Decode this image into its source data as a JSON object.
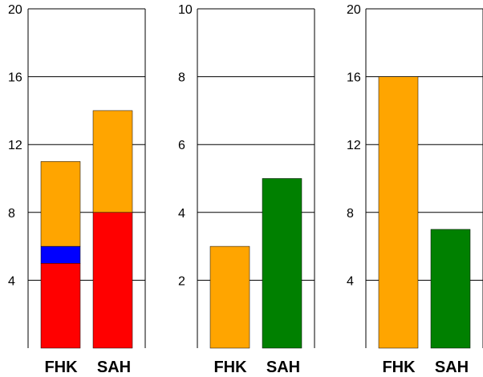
{
  "chart_data": [
    {
      "type": "bar",
      "stacked": true,
      "categories": [
        "FHK",
        "SAH"
      ],
      "ylim": [
        0,
        20
      ],
      "yticks": [
        4,
        8,
        12,
        16,
        20
      ],
      "grid": true,
      "series": [
        {
          "color": "#ff0000",
          "values": [
            5,
            8
          ]
        },
        {
          "color": "#0000ff",
          "values": [
            1,
            0
          ]
        },
        {
          "color": "#ffa500",
          "values": [
            5,
            6
          ]
        }
      ]
    },
    {
      "type": "bar",
      "categories": [
        "FHK",
        "SAH"
      ],
      "ylim": [
        0,
        10
      ],
      "yticks": [
        2,
        4,
        6,
        8,
        10
      ],
      "grid": true,
      "series": [
        {
          "values": [
            3,
            5
          ],
          "colors": [
            "#ffa500",
            "#008000"
          ]
        }
      ]
    },
    {
      "type": "bar",
      "categories": [
        "FHK",
        "SAH"
      ],
      "ylim": [
        0,
        20
      ],
      "yticks": [
        4,
        8,
        12,
        16,
        20
      ],
      "grid": true,
      "series": [
        {
          "values": [
            16,
            7
          ],
          "colors": [
            "#ffa500",
            "#008000"
          ]
        }
      ]
    }
  ]
}
